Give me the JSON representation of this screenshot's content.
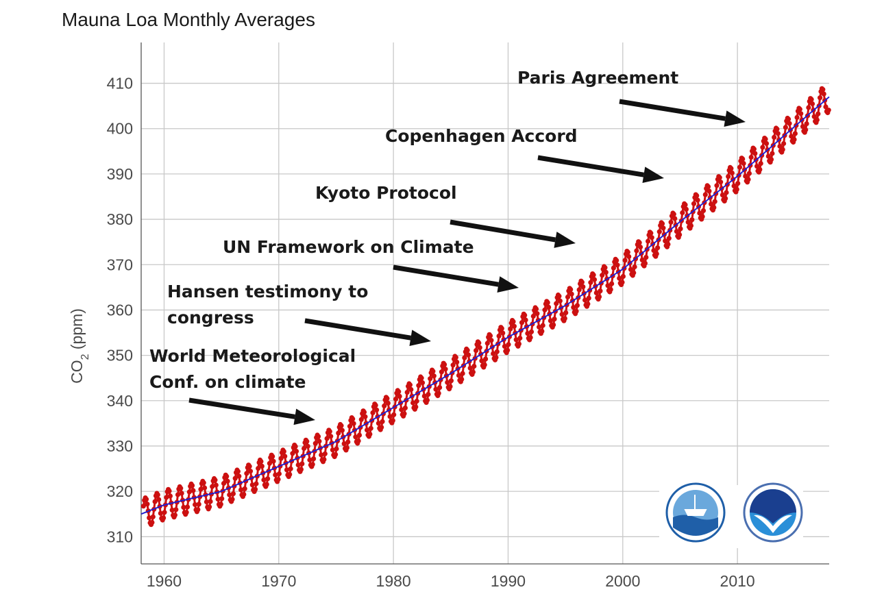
{
  "chart_data": {
    "type": "line",
    "title": "Mauna Loa Monthly Averages",
    "ylabel_main": "CO",
    "ylabel_sub": "2",
    "ylabel_unit": " (ppm)",
    "xlim": [
      1958,
      2018
    ],
    "ylim": [
      304,
      419
    ],
    "x_ticks": [
      1960,
      1970,
      1980,
      1990,
      2000,
      2010
    ],
    "y_ticks": [
      310,
      320,
      330,
      340,
      350,
      360,
      370,
      380,
      390,
      400,
      410
    ],
    "grid": true,
    "series": [
      {
        "type": "monthly",
        "color": "#cc1010",
        "seasonal_amplitude_ppm": 3.2,
        "x_start": 1958.2,
        "x_end": 2018.0
      },
      {
        "type": "trend",
        "color": "#2020d0",
        "x": [
          1958,
          1960,
          1965,
          1970,
          1975,
          1980,
          1985,
          1990,
          1995,
          2000,
          2005,
          2010,
          2015,
          2018
        ],
        "y": [
          315,
          317,
          320,
          325.5,
          331,
          338.5,
          346,
          354,
          361,
          369,
          379.5,
          389.5,
          400.5,
          407
        ]
      }
    ],
    "annotations": [
      {
        "lines": [
          "Paris Agreement"
        ],
        "x": 2015.0
      },
      {
        "lines": [
          "Copenhagen Accord"
        ],
        "x": 2009.0
      },
      {
        "lines": [
          "Kyoto Protocol"
        ],
        "x": 1997.0
      },
      {
        "lines": [
          "UN Framework on Climate"
        ],
        "x": 1992.0
      },
      {
        "lines": [
          "Hansen testimony to",
          "congress"
        ],
        "x": 1988.0
      },
      {
        "lines": [
          "World Meteorological",
          "Conf. on climate"
        ],
        "x": 1979.0
      }
    ],
    "logos": [
      {
        "name": "noaa-research-seal-icon",
        "colors": [
          "#1f5fa8",
          "#6aa8dc"
        ]
      },
      {
        "name": "noaa-logo-icon",
        "colors": [
          "#1a3f8f",
          "#2a8fd8"
        ]
      }
    ]
  }
}
